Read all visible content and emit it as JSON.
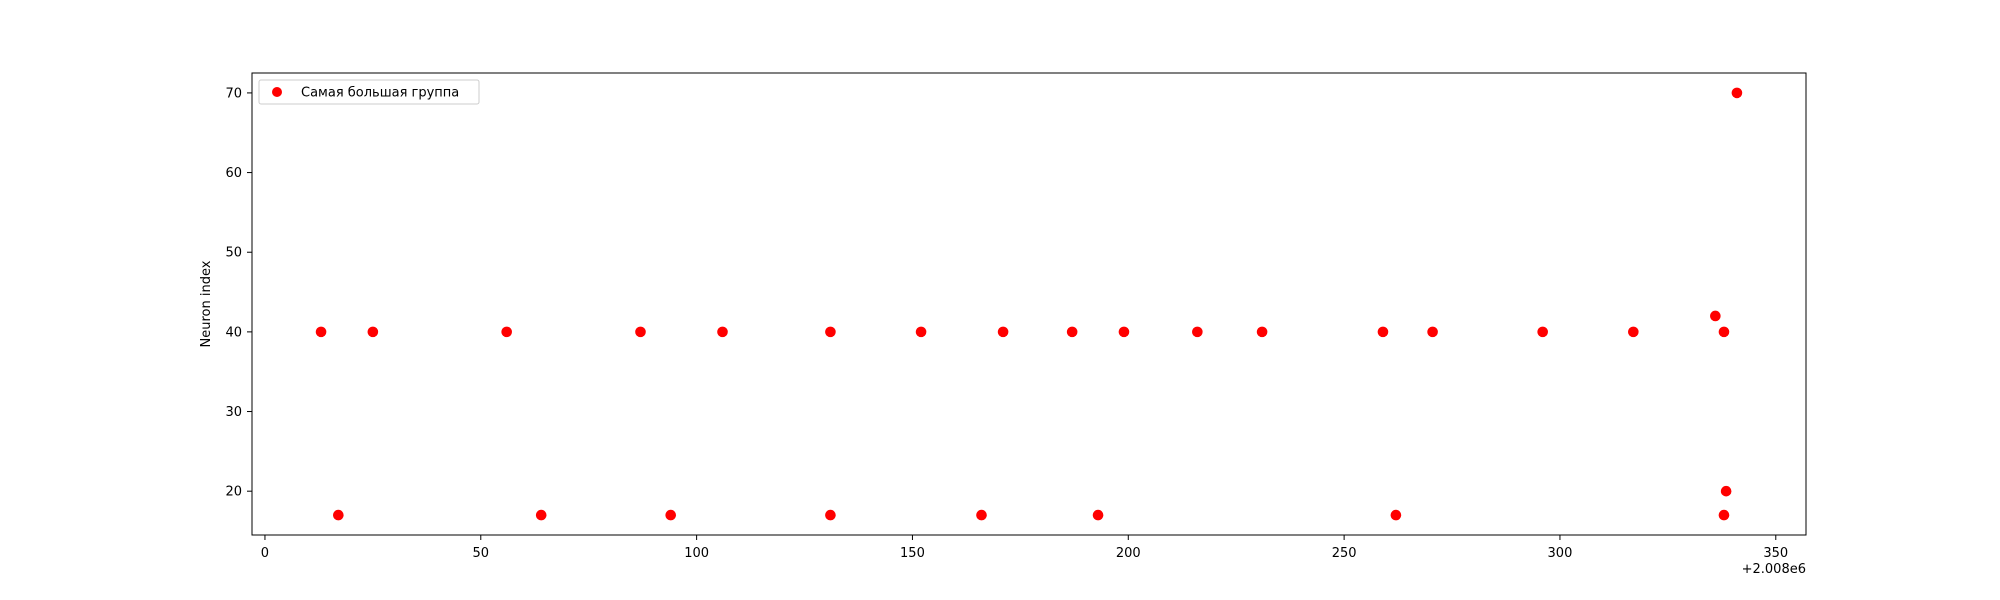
{
  "chart_data": {
    "type": "scatter",
    "title": "",
    "xlabel": "",
    "ylabel": "Neuron index",
    "x_offset_label": "+2.008e6",
    "xlim": [
      -3,
      357
    ],
    "ylim": [
      14.5,
      72.5
    ],
    "xticks": [
      0,
      50,
      100,
      150,
      200,
      250,
      300,
      350
    ],
    "yticks": [
      20,
      30,
      40,
      50,
      60,
      70
    ],
    "grid": false,
    "legend_position": "top-left",
    "series": [
      {
        "name": "Самая большая группа",
        "color": "#ff0000",
        "points": [
          {
            "x": 13,
            "y": 40
          },
          {
            "x": 17,
            "y": 17
          },
          {
            "x": 25,
            "y": 40
          },
          {
            "x": 56,
            "y": 40
          },
          {
            "x": 64,
            "y": 17
          },
          {
            "x": 87,
            "y": 40
          },
          {
            "x": 94,
            "y": 17
          },
          {
            "x": 106,
            "y": 40
          },
          {
            "x": 131,
            "y": 40
          },
          {
            "x": 131,
            "y": 17
          },
          {
            "x": 152,
            "y": 40
          },
          {
            "x": 166,
            "y": 17
          },
          {
            "x": 171,
            "y": 40
          },
          {
            "x": 187,
            "y": 40
          },
          {
            "x": 193,
            "y": 17
          },
          {
            "x": 199,
            "y": 40
          },
          {
            "x": 216,
            "y": 40
          },
          {
            "x": 231,
            "y": 40
          },
          {
            "x": 259,
            "y": 40
          },
          {
            "x": 262,
            "y": 17
          },
          {
            "x": 270.5,
            "y": 40
          },
          {
            "x": 296,
            "y": 40
          },
          {
            "x": 317,
            "y": 40
          },
          {
            "x": 336,
            "y": 42
          },
          {
            "x": 338,
            "y": 17
          },
          {
            "x": 338,
            "y": 40
          },
          {
            "x": 338.5,
            "y": 20
          },
          {
            "x": 341,
            "y": 70
          }
        ]
      }
    ]
  }
}
